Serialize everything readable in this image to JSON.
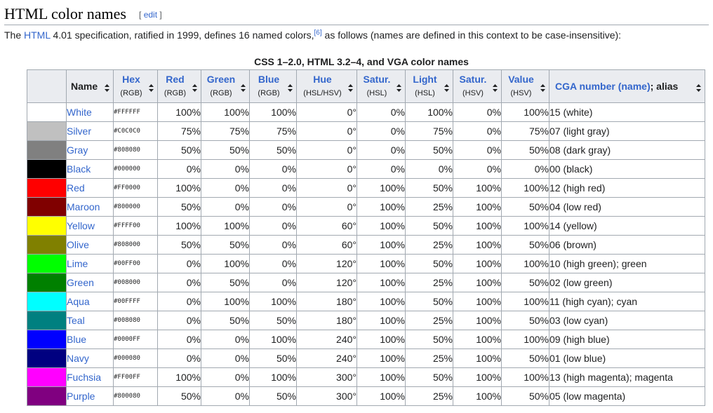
{
  "heading": {
    "title": "HTML color names",
    "edit_open": "[",
    "edit_label": "edit",
    "edit_close": "]"
  },
  "intro": {
    "text_before": "The ",
    "link_html": "HTML",
    "text_mid": " 4.01 specification, ratified in 1999, defines 16 named colors,",
    "citation": "[6]",
    "text_after": " as follows (names are defined in this context to be case-insensitive):"
  },
  "table": {
    "caption": "CSS 1–2.0, HTML 3.2–4, and VGA color names",
    "headers": {
      "name": "Name",
      "hex": "Hex",
      "hex_sub": "(RGB)",
      "red": "Red",
      "red_sub": "(RGB)",
      "green": "Green",
      "green_sub": "(RGB)",
      "blue": "Blue",
      "blue_sub": "(RGB)",
      "hue": "Hue",
      "hue_sub": "(HSL/HSV)",
      "satl": "Satur.",
      "satl_sub": "(HSL)",
      "light": "Light",
      "light_sub": "(HSL)",
      "satv": "Satur.",
      "satv_sub": "(HSV)",
      "value": "Value",
      "value_sub": "(HSV)",
      "cga_link": "CGA number (name)",
      "cga_rest": "; alias"
    },
    "rows": [
      {
        "swatch": "#FFFFFF",
        "name": "White",
        "hex": "#FFFFFF",
        "r": "100%",
        "g": "100%",
        "b": "100%",
        "hue": "0°",
        "sl": "0%",
        "l": "100%",
        "sv": "0%",
        "v": "100%",
        "cga": "15 (white)"
      },
      {
        "swatch": "#C0C0C0",
        "name": "Silver",
        "hex": "#C0C0C0",
        "r": "75%",
        "g": "75%",
        "b": "75%",
        "hue": "0°",
        "sl": "0%",
        "l": "75%",
        "sv": "0%",
        "v": "75%",
        "cga": "07 (light gray)"
      },
      {
        "swatch": "#808080",
        "name": "Gray",
        "hex": "#808080",
        "r": "50%",
        "g": "50%",
        "b": "50%",
        "hue": "0°",
        "sl": "0%",
        "l": "50%",
        "sv": "0%",
        "v": "50%",
        "cga": "08 (dark gray)"
      },
      {
        "swatch": "#000000",
        "name": "Black",
        "hex": "#000000",
        "r": "0%",
        "g": "0%",
        "b": "0%",
        "hue": "0°",
        "sl": "0%",
        "l": "0%",
        "sv": "0%",
        "v": "0%",
        "cga": "00 (black)"
      },
      {
        "swatch": "#FF0000",
        "name": "Red",
        "hex": "#FF0000",
        "r": "100%",
        "g": "0%",
        "b": "0%",
        "hue": "0°",
        "sl": "100%",
        "l": "50%",
        "sv": "100%",
        "v": "100%",
        "cga": "12 (high red)"
      },
      {
        "swatch": "#800000",
        "name": "Maroon",
        "hex": "#800000",
        "r": "50%",
        "g": "0%",
        "b": "0%",
        "hue": "0°",
        "sl": "100%",
        "l": "25%",
        "sv": "100%",
        "v": "50%",
        "cga": "04 (low red)"
      },
      {
        "swatch": "#FFFF00",
        "name": "Yellow",
        "hex": "#FFFF00",
        "r": "100%",
        "g": "100%",
        "b": "0%",
        "hue": "60°",
        "sl": "100%",
        "l": "50%",
        "sv": "100%",
        "v": "100%",
        "cga": "14 (yellow)"
      },
      {
        "swatch": "#808000",
        "name": "Olive",
        "hex": "#808000",
        "r": "50%",
        "g": "50%",
        "b": "0%",
        "hue": "60°",
        "sl": "100%",
        "l": "25%",
        "sv": "100%",
        "v": "50%",
        "cga": "06 (brown)"
      },
      {
        "swatch": "#00FF00",
        "name": "Lime",
        "hex": "#00FF00",
        "r": "0%",
        "g": "100%",
        "b": "0%",
        "hue": "120°",
        "sl": "100%",
        "l": "50%",
        "sv": "100%",
        "v": "100%",
        "cga": "10 (high green); green"
      },
      {
        "swatch": "#008000",
        "name": "Green",
        "hex": "#008000",
        "r": "0%",
        "g": "50%",
        "b": "0%",
        "hue": "120°",
        "sl": "100%",
        "l": "25%",
        "sv": "100%",
        "v": "50%",
        "cga": "02 (low green)"
      },
      {
        "swatch": "#00FFFF",
        "name": "Aqua",
        "hex": "#00FFFF",
        "r": "0%",
        "g": "100%",
        "b": "100%",
        "hue": "180°",
        "sl": "100%",
        "l": "50%",
        "sv": "100%",
        "v": "100%",
        "cga": "11 (high cyan); cyan"
      },
      {
        "swatch": "#008080",
        "name": "Teal",
        "hex": "#008080",
        "r": "0%",
        "g": "50%",
        "b": "50%",
        "hue": "180°",
        "sl": "100%",
        "l": "25%",
        "sv": "100%",
        "v": "50%",
        "cga": "03 (low cyan)"
      },
      {
        "swatch": "#0000FF",
        "name": "Blue",
        "hex": "#0000FF",
        "r": "0%",
        "g": "0%",
        "b": "100%",
        "hue": "240°",
        "sl": "100%",
        "l": "50%",
        "sv": "100%",
        "v": "100%",
        "cga": "09 (high blue)"
      },
      {
        "swatch": "#000080",
        "name": "Navy",
        "hex": "#000080",
        "r": "0%",
        "g": "0%",
        "b": "50%",
        "hue": "240°",
        "sl": "100%",
        "l": "25%",
        "sv": "100%",
        "v": "50%",
        "cga": "01 (low blue)"
      },
      {
        "swatch": "#FF00FF",
        "name": "Fuchsia",
        "hex": "#FF00FF",
        "r": "100%",
        "g": "0%",
        "b": "100%",
        "hue": "300°",
        "sl": "100%",
        "l": "50%",
        "sv": "100%",
        "v": "100%",
        "cga": "13 (high magenta); magenta"
      },
      {
        "swatch": "#800080",
        "name": "Purple",
        "hex": "#800080",
        "r": "50%",
        "g": "0%",
        "b": "50%",
        "hue": "300°",
        "sl": "100%",
        "l": "25%",
        "sv": "100%",
        "v": "50%",
        "cga": "05 (low magenta)"
      }
    ]
  }
}
